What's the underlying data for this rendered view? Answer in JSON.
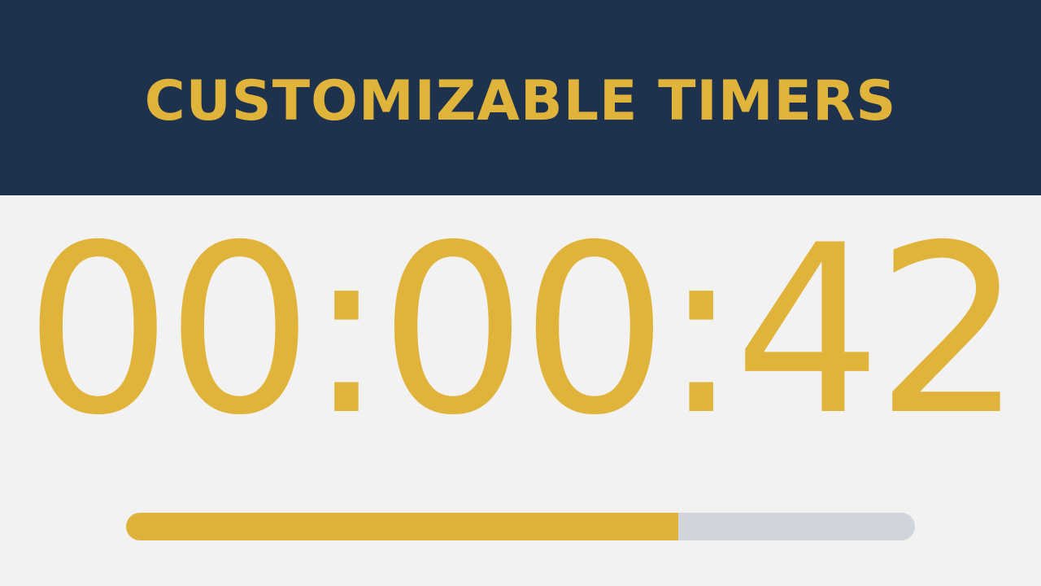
{
  "header": {
    "title": "CUSTOMIZABLE TIMERS"
  },
  "timer": {
    "display": "00:00:42"
  },
  "progress": {
    "fraction": 0.7
  },
  "colors": {
    "header_bg": "#1e324d",
    "accent": "#e0b43a",
    "track": "#d0d5dc",
    "page_bg": "#f2f2f2"
  }
}
